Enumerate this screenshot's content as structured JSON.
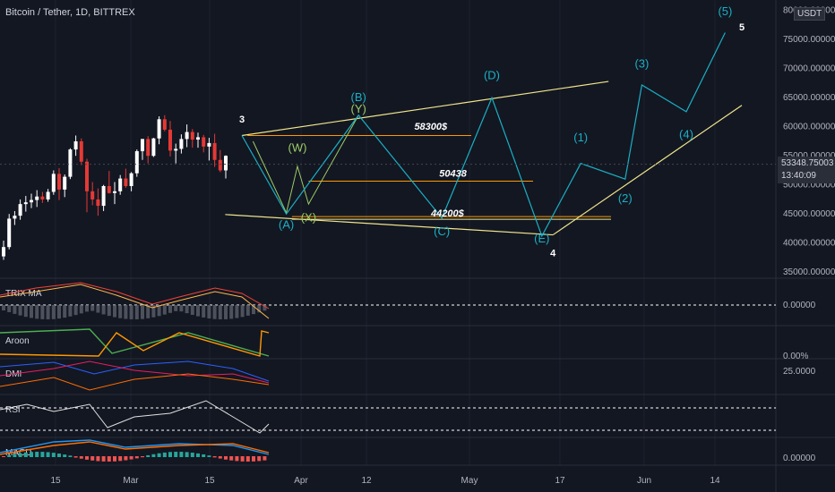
{
  "header": {
    "symbol_title": "Bitcoin / Tether, 1D, BITTREX",
    "currency_badge": "USDT",
    "last_price": "53348.75003",
    "countdown": "13:40:09"
  },
  "colors": {
    "background": "#131722",
    "candle_up": "#ffffff",
    "candle_down": "#e53935",
    "wave_line": "#1ab0c4",
    "trend_line": "#f0e68c",
    "level_line": "#ff9800",
    "wxy_line": "#9ccc65"
  },
  "chart_data": [
    {
      "type": "candlestick",
      "panel": "price",
      "y_axis_ticks": [
        "80000.00000",
        "75000.00000",
        "70000.00000",
        "65000.00000",
        "60000.00000",
        "55000.00000",
        "50000.00000",
        "45000.00000",
        "40000.00000",
        "35000.00000"
      ],
      "x_axis_ticks": [
        "15",
        "Mar",
        "15",
        "Apr",
        "12",
        "May",
        "17",
        "Jun",
        "14"
      ],
      "ylim": [
        30000,
        82000
      ],
      "series": [
        {
          "name": "",
          "values": [
            [
              37500,
              40200,
              36900,
              39100
            ],
            [
              39100,
              44800,
              38700,
              44000
            ],
            [
              44000,
              45300,
              42900,
              44500
            ],
            [
              44500,
              47300,
              43800,
              46500
            ],
            [
              46500,
              47900,
              45200,
              46800
            ],
            [
              46800,
              48300,
              45800,
              47200
            ],
            [
              47200,
              48900,
              46000,
              47800
            ],
            [
              47800,
              48600,
              46700,
              47300
            ],
            [
              47300,
              49100,
              46900,
              48600
            ],
            [
              48600,
              52300,
              48100,
              51700
            ],
            [
              51700,
              52700,
              47200,
              49000
            ],
            [
              49000,
              51600,
              47700,
              51200
            ],
            [
              51200,
              56100,
              50800,
              55900
            ],
            [
              55900,
              58300,
              54800,
              57300
            ],
            [
              57300,
              57800,
              53200,
              53800
            ],
            [
              53800,
              54300,
              45100,
              48700
            ],
            [
              48700,
              50300,
              46300,
              47300
            ],
            [
              47300,
              49200,
              44500,
              46200
            ],
            [
              46200,
              49800,
              45300,
              49600
            ],
            [
              49600,
              52200,
              48300,
              48400
            ],
            [
              48400,
              50300,
              46500,
              48700
            ],
            [
              48700,
              51500,
              48100,
              50900
            ],
            [
              50900,
              52600,
              49300,
              49600
            ],
            [
              49600,
              52000,
              48700,
              51800
            ],
            [
              51800,
              55900,
              51200,
              55600
            ],
            [
              55600,
              57700,
              54100,
              57700
            ],
            [
              57700,
              58200,
              53500,
              54800
            ],
            [
              54800,
              57900,
              54600,
              57800
            ],
            [
              57800,
              61600,
              56800,
              61100
            ],
            [
              61100,
              61800,
              59000,
              59300
            ],
            [
              59300,
              60800,
              54700,
              55700
            ],
            [
              55700,
              56900,
              53500,
              56000
            ],
            [
              56000,
              58500,
              55200,
              57700
            ],
            [
              57700,
              60200,
              56300,
              58900
            ],
            [
              58900,
              59400,
              56200,
              57600
            ],
            [
              57600,
              58800,
              56200,
              58000
            ],
            [
              58000,
              58400,
              55400,
              56400
            ],
            [
              56400,
              57900,
              54000,
              57000
            ],
            [
              57000,
              58600,
              52900,
              54100
            ],
            [
              54100,
              55800,
              52000,
              52300
            ],
            [
              52300,
              54900,
              50900,
              54800
            ]
          ]
        }
      ],
      "annotations": [
        {
          "text": "3",
          "x": "2021-02-20",
          "y": 60500
        },
        {
          "text": "(A)",
          "x": "2021-02-28",
          "y": 42300
        },
        {
          "text": "(W)",
          "x": "2021-03-02",
          "y": 55500
        },
        {
          "text": "(X)",
          "x": "2021-03-04",
          "y": 43500
        },
        {
          "text": "(Y)",
          "x": "2021-03-13",
          "y": 62200
        },
        {
          "text": "(B)",
          "x": "2021-03-13",
          "y": 64200
        },
        {
          "text": "58300$",
          "x": "2021-03-26",
          "y": 59300
        },
        {
          "text": "50438",
          "x": "2021-03-30",
          "y": 51200
        },
        {
          "text": "44200$",
          "x": "2021-03-29",
          "y": 44400
        },
        {
          "text": "(C)",
          "x": "2021-03-28",
          "y": 41100
        },
        {
          "text": "(D)",
          "x": "2021-04-06",
          "y": 68000
        },
        {
          "text": "(E)",
          "x": "2021-04-15",
          "y": 39900
        },
        {
          "text": "4",
          "x": "2021-04-17",
          "y": 37500
        },
        {
          "text": "(1)",
          "x": "2021-04-22",
          "y": 57300
        },
        {
          "text": "(2)",
          "x": "2021-04-30",
          "y": 46800
        },
        {
          "text": "(3)",
          "x": "2021-05-03",
          "y": 70000
        },
        {
          "text": "(4)",
          "x": "2021-05-11",
          "y": 57800
        },
        {
          "text": "(5)",
          "x": "2021-05-18",
          "y": 79000
        },
        {
          "text": "5",
          "x": "2021-05-21",
          "y": 76400
        }
      ],
      "horizontal_levels": [
        58300,
        50438,
        44200
      ]
    },
    {
      "type": "line",
      "panel": "indicator",
      "title": "TRIX MA",
      "y_axis_ticks": [
        "0.00000"
      ]
    },
    {
      "type": "line",
      "panel": "indicator",
      "title": "Aroon",
      "y_axis_ticks": [
        "0.00%"
      ]
    },
    {
      "type": "line",
      "panel": "indicator",
      "title": "DMI",
      "y_axis_ticks": [
        "25.0000"
      ]
    },
    {
      "type": "line",
      "panel": "indicator",
      "title": "RSI",
      "y_axis_ticks": []
    },
    {
      "type": "bar",
      "panel": "indicator",
      "title": "MACD",
      "y_axis_ticks": [
        "0.00000"
      ]
    }
  ]
}
